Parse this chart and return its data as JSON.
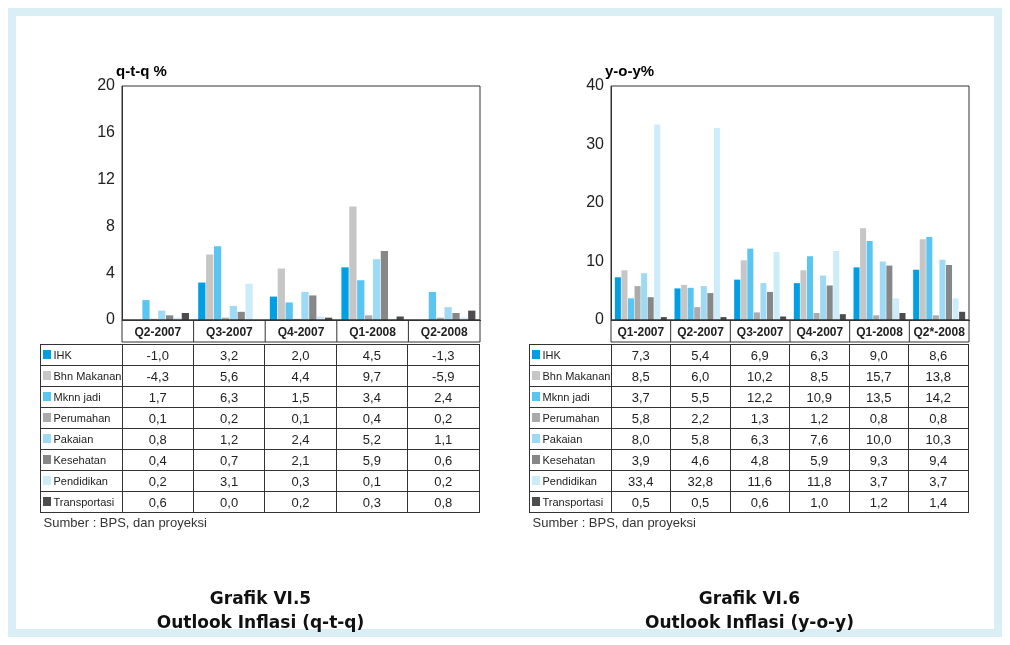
{
  "chart_data": [
    {
      "type": "bar",
      "title": "Grafik VI.5",
      "subtitle": "Outlook Inflasi (q-t-q)",
      "ylabel": "q-t-q %",
      "categories": [
        "Q2-2007",
        "Q3-2007",
        "Q4-2007",
        "Q1-2008",
        "Q2-2008"
      ],
      "ylim": [
        0,
        20
      ],
      "yticks": [
        0,
        4,
        8,
        12,
        16,
        20
      ],
      "grid": false,
      "legend": "bottom",
      "annotations": [
        "Sumber : BPS, dan proyeksi"
      ],
      "series": [
        {
          "name": "IHK",
          "color": "#009fe3",
          "values": [
            null,
            3.2,
            2.0,
            4.5,
            null
          ],
          "value_labels": [
            "-1,0",
            "3,2",
            "2,0",
            "4,5",
            "-1,3"
          ]
        },
        {
          "name": "Bhn Makanan",
          "color": "#c6c6c6",
          "values": [
            null,
            5.6,
            4.4,
            9.7,
            null
          ],
          "value_labels": [
            "-4,3",
            "5,6",
            "4,4",
            "9,7",
            "-5,9"
          ]
        },
        {
          "name": "Mknn jadi",
          "color": "#5bc5f2",
          "values": [
            1.7,
            6.3,
            1.5,
            3.4,
            2.4
          ],
          "value_labels": [
            "1,7",
            "6,3",
            "1,5",
            "3,4",
            "2,4"
          ]
        },
        {
          "name": "Perumahan",
          "color": "#ababab",
          "values": [
            0.1,
            0.2,
            0.1,
            0.4,
            0.2
          ],
          "value_labels": [
            "0,1",
            "0,2",
            "0,1",
            "0,4",
            "0,2"
          ]
        },
        {
          "name": "Pakaian",
          "color": "#9fdaf5",
          "values": [
            0.8,
            1.2,
            2.4,
            5.2,
            1.1
          ],
          "value_labels": [
            "0,8",
            "1,2",
            "2,4",
            "5,2",
            "1,1"
          ]
        },
        {
          "name": "Kesehatan",
          "color": "#878787",
          "values": [
            0.4,
            0.7,
            2.1,
            5.9,
            0.6
          ],
          "value_labels": [
            "0,4",
            "0,7",
            "2,1",
            "5,9",
            "0,6"
          ]
        },
        {
          "name": "Pendidikan",
          "color": "#cdecfa",
          "values": [
            0.2,
            3.1,
            0.3,
            0.1,
            0.2
          ],
          "value_labels": [
            "0,2",
            "3,1",
            "0,3",
            "0,1",
            "0,2"
          ]
        },
        {
          "name": "Transportasi",
          "color": "#4d4d4d",
          "values": [
            0.6,
            0.0,
            0.2,
            0.3,
            0.8
          ],
          "value_labels": [
            "0,6",
            "0,0",
            "0,2",
            "0,3",
            "0,8"
          ]
        }
      ]
    },
    {
      "type": "bar",
      "title": "Grafik VI.6",
      "subtitle": "Outlook Inflasi (y-o-y)",
      "ylabel": "y-o-y%",
      "categories": [
        "Q1-2007",
        "Q2-2007",
        "Q3-2007",
        "Q4-2007",
        "Q1-2008",
        "Q2*-2008"
      ],
      "ylim": [
        0,
        40
      ],
      "yticks": [
        0,
        10,
        20,
        30,
        40
      ],
      "grid": false,
      "legend": "bottom",
      "annotations": [
        "Sumber : BPS, dan proyeksi"
      ],
      "series": [
        {
          "name": "IHK",
          "color": "#009fe3",
          "values": [
            7.3,
            5.4,
            6.9,
            6.3,
            9.0,
            8.6
          ],
          "value_labels": [
            "7,3",
            "5,4",
            "6,9",
            "6,3",
            "9,0",
            "8,6"
          ]
        },
        {
          "name": "Bhn Makanan",
          "color": "#c6c6c6",
          "values": [
            8.5,
            6.0,
            10.2,
            8.5,
            15.7,
            13.8
          ],
          "value_labels": [
            "8,5",
            "6,0",
            "10,2",
            "8,5",
            "15,7",
            "13,8"
          ]
        },
        {
          "name": "Mknn jadi",
          "color": "#5bc5f2",
          "values": [
            3.7,
            5.5,
            12.2,
            10.9,
            13.5,
            14.2
          ],
          "value_labels": [
            "3,7",
            "5,5",
            "12,2",
            "10,9",
            "13,5",
            "14,2"
          ]
        },
        {
          "name": "Perumahan",
          "color": "#ababab",
          "values": [
            5.8,
            2.2,
            1.3,
            1.2,
            0.8,
            0.8
          ],
          "value_labels": [
            "5,8",
            "2,2",
            "1,3",
            "1,2",
            "0,8",
            "0,8"
          ]
        },
        {
          "name": "Pakaian",
          "color": "#9fdaf5",
          "values": [
            8.0,
            5.8,
            6.3,
            7.6,
            10.0,
            10.3
          ],
          "value_labels": [
            "8,0",
            "5,8",
            "6,3",
            "7,6",
            "10,0",
            "10,3"
          ]
        },
        {
          "name": "Kesehatan",
          "color": "#878787",
          "values": [
            3.9,
            4.6,
            4.8,
            5.9,
            9.3,
            9.4
          ],
          "value_labels": [
            "3,9",
            "4,6",
            "4,8",
            "5,9",
            "9,3",
            "9,4"
          ]
        },
        {
          "name": "Pendidikan",
          "color": "#cdecfa",
          "values": [
            33.4,
            32.8,
            11.6,
            11.8,
            3.7,
            3.7
          ],
          "value_labels": [
            "33,4",
            "32,8",
            "11,6",
            "11,8",
            "3,7",
            "3,7"
          ]
        },
        {
          "name": "Transportasi",
          "color": "#4d4d4d",
          "values": [
            0.5,
            0.5,
            0.6,
            1.0,
            1.2,
            1.4
          ],
          "value_labels": [
            "0,5",
            "0,5",
            "0,6",
            "1,0",
            "1,2",
            "1,4"
          ]
        }
      ]
    }
  ]
}
